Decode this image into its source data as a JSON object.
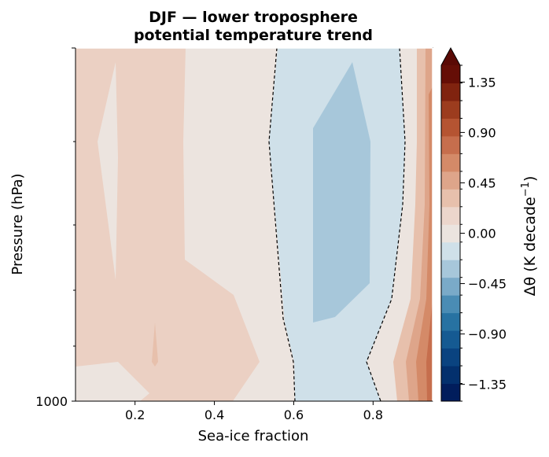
{
  "chart_data": {
    "type": "contour",
    "title_line1": "DJF — lower troposphere",
    "title_line2": "potential temperature trend",
    "xlabel": "Sea-ice fraction",
    "ylabel": "Pressure (hPa)",
    "xlim": [
      0.05,
      0.95
    ],
    "x_ticks": [
      0.2,
      0.4,
      0.6,
      0.8
    ],
    "x_tick_labels": [
      "0.2",
      "0.4",
      "0.6",
      "0.8"
    ],
    "y_tick_labels": [
      "1000"
    ],
    "colorbar": {
      "label_prefix": "Δθ (K decade",
      "label_exp": "−1",
      "label_suffix": ")",
      "range": [
        -1.5,
        1.5
      ],
      "extend": "max",
      "ticks": [
        -1.35,
        -0.9,
        -0.45,
        0.0,
        0.45,
        0.9,
        1.35
      ],
      "tick_labels": [
        "−1.35",
        "−0.90",
        "−0.45",
        "0.00",
        "0.45",
        "0.90",
        "1.35"
      ],
      "colors": [
        "#011d5c",
        "#03306d",
        "#0a4380",
        "#155a92",
        "#2772a2",
        "#4a8cb4",
        "#7aaac8",
        "#a7c7da",
        "#cfe0e9",
        "#ebe4df",
        "#ecd6cc",
        "#e7c0ac",
        "#dea58a",
        "#d48a68",
        "#c66e4d",
        "#b55432",
        "#9c3c1e",
        "#80230f",
        "#650e06"
      ],
      "extend_color": "#5a0a05"
    },
    "regions": {
      "background": "#ebd0c3",
      "light_band": "#ece4df",
      "cool_zone": "#cfe0e9",
      "cool_core": "#a7c7da",
      "warm_edge_1": "#e7c0ac",
      "warm_edge_2": "#dea58a",
      "warm_edge_3": "#d48a68",
      "warm_edge_4": "#c66e4d",
      "zero_contour_style": "black dashed"
    }
  }
}
